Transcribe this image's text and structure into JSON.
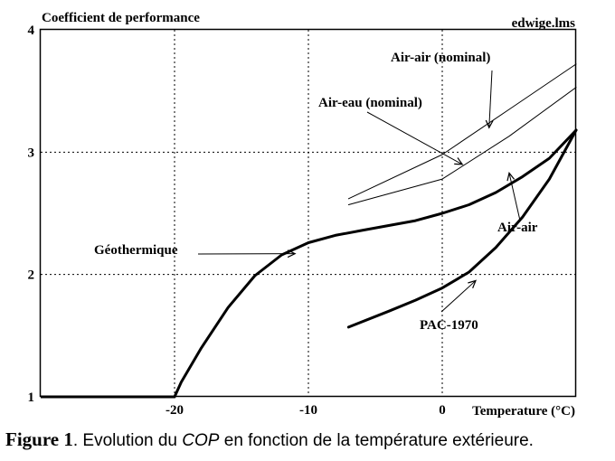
{
  "chart_data": {
    "type": "line",
    "title": "Coefficient de performance",
    "source_tag": "edwige.lms",
    "xlabel": "Temperature (°C)",
    "xlim": [
      -30,
      10
    ],
    "ylim": [
      1,
      4
    ],
    "xticks": [
      -20,
      -10,
      0
    ],
    "yticks": [
      1,
      2,
      3,
      4
    ],
    "grid": true,
    "series": [
      {
        "name": "Air-air (nominal)",
        "weight": "thin",
        "x": [
          -7,
          0,
          5,
          10
        ],
        "y": [
          2.62,
          2.98,
          3.35,
          3.72
        ]
      },
      {
        "name": "Air-eau (nominal)",
        "weight": "thin",
        "x": [
          -7,
          0,
          5,
          10
        ],
        "y": [
          2.57,
          2.78,
          3.13,
          3.53
        ]
      },
      {
        "name": "Géothermique",
        "weight": "thick",
        "x": [
          -20,
          -19.5,
          -18,
          -16,
          -14,
          -12,
          -10,
          -8,
          -6,
          -4,
          -2,
          0,
          2,
          4,
          6,
          8,
          10
        ],
        "y": [
          1.0,
          1.12,
          1.4,
          1.73,
          1.99,
          2.16,
          2.26,
          2.32,
          2.36,
          2.4,
          2.44,
          2.5,
          2.57,
          2.67,
          2.8,
          2.95,
          3.18
        ]
      },
      {
        "name": "Air-air",
        "weight": "thick",
        "x": [
          -7,
          -4,
          -2,
          0,
          2,
          4,
          6,
          8,
          10
        ],
        "y": [
          1.57,
          1.7,
          1.79,
          1.89,
          2.02,
          2.22,
          2.47,
          2.78,
          3.18
        ]
      },
      {
        "name": "PAC-1970",
        "weight": "none",
        "x": [],
        "y": []
      }
    ],
    "baseline": {
      "x": [
        -30,
        -20
      ],
      "y": [
        1.0,
        1.0
      ]
    },
    "annotations": [
      {
        "text": "Air-air (nominal)",
        "arrow_to": [
          3.5,
          3.2
        ]
      },
      {
        "text": "Air-eau (nominal)",
        "arrow_to": [
          1.5,
          2.9
        ]
      },
      {
        "text": "Géothermique",
        "arrow_to": [
          -11,
          2.17
        ]
      },
      {
        "text": "Air-air",
        "arrow_to": [
          5,
          2.83
        ]
      },
      {
        "text": "PAC-1970",
        "arrow_to": [
          2.5,
          1.95
        ]
      }
    ]
  },
  "caption": {
    "figure_label": "Figure 1",
    "text_before": ". Evolution du ",
    "italic": "COP",
    "text_after": " en fonction de la température extérieure."
  }
}
